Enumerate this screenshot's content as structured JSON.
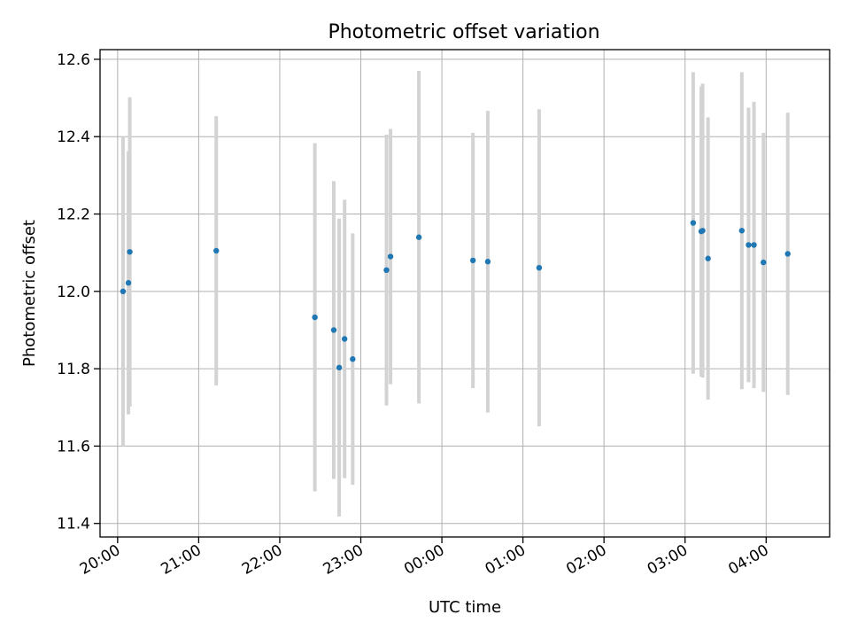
{
  "chart_data": {
    "type": "scatter",
    "title": "Photometric offset variation",
    "xlabel": "UTC time",
    "ylabel": "Photometric offset",
    "grid": true,
    "xlim": [
      "19:47",
      "04:47"
    ],
    "ylim": [
      11.365,
      12.625
    ],
    "xticks": [
      "20:00",
      "21:00",
      "22:00",
      "23:00",
      "00:00",
      "01:00",
      "02:00",
      "03:00",
      "04:00"
    ],
    "yticks": [
      "11.4",
      "11.6",
      "11.8",
      "12.0",
      "12.2",
      "12.4",
      "12.6"
    ],
    "point_color": "#1f77b4",
    "errorbar_color": "#d3d3d3",
    "points": [
      {
        "x": "20:04",
        "y": 12.0,
        "low": 11.6,
        "high": 12.4
      },
      {
        "x": "20:08",
        "y": 12.022,
        "low": 11.682,
        "high": 12.362
      },
      {
        "x": "20:09",
        "y": 12.102,
        "low": 11.702,
        "high": 12.502
      },
      {
        "x": "21:13",
        "y": 12.105,
        "low": 11.757,
        "high": 12.453
      },
      {
        "x": "22:26",
        "y": 11.933,
        "low": 11.483,
        "high": 12.383
      },
      {
        "x": "22:40",
        "y": 11.9,
        "low": 11.515,
        "high": 12.285
      },
      {
        "x": "22:44",
        "y": 11.803,
        "low": 11.418,
        "high": 12.188
      },
      {
        "x": "22:48",
        "y": 11.877,
        "low": 11.517,
        "high": 12.237
      },
      {
        "x": "22:54",
        "y": 11.825,
        "low": 11.5,
        "high": 12.15
      },
      {
        "x": "23:19",
        "y": 12.055,
        "low": 11.705,
        "high": 12.405
      },
      {
        "x": "23:22",
        "y": 12.09,
        "low": 11.76,
        "high": 12.42
      },
      {
        "x": "23:43",
        "y": 12.14,
        "low": 11.71,
        "high": 12.57
      },
      {
        "x": "00:23",
        "y": 12.08,
        "low": 11.75,
        "high": 12.41
      },
      {
        "x": "00:34",
        "y": 12.077,
        "low": 11.687,
        "high": 12.467
      },
      {
        "x": "01:12",
        "y": 12.061,
        "low": 11.651,
        "high": 12.471
      },
      {
        "x": "03:06",
        "y": 12.177,
        "low": 11.787,
        "high": 12.567
      },
      {
        "x": "03:12",
        "y": 12.155,
        "low": 11.78,
        "high": 12.53
      },
      {
        "x": "03:13",
        "y": 12.157,
        "low": 11.777,
        "high": 12.537
      },
      {
        "x": "03:17",
        "y": 12.085,
        "low": 11.72,
        "high": 12.45
      },
      {
        "x": "03:42",
        "y": 12.157,
        "low": 11.747,
        "high": 12.567
      },
      {
        "x": "03:47",
        "y": 12.12,
        "low": 11.765,
        "high": 12.475
      },
      {
        "x": "03:51",
        "y": 12.12,
        "low": 11.75,
        "high": 12.49
      },
      {
        "x": "03:58",
        "y": 12.075,
        "low": 11.74,
        "high": 12.41
      },
      {
        "x": "04:16",
        "y": 12.097,
        "low": 11.732,
        "high": 12.462
      }
    ]
  }
}
